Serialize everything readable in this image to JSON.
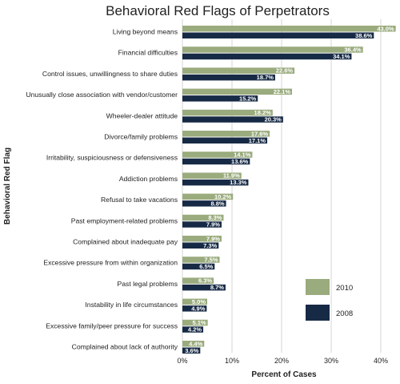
{
  "chart_data": {
    "type": "bar",
    "orientation": "horizontal",
    "title": "Behavioral Red Flags of Perpetrators",
    "xlabel": "Percent of Cases",
    "ylabel": "Behavioral Red Flag",
    "xlim": [
      0,
      45
    ],
    "x_ticks": [
      "0%",
      "10%",
      "20%",
      "30%",
      "40%"
    ],
    "grid": true,
    "legend_position": "bottom-right",
    "categories": [
      "Living beyond means",
      "Financial difficulties",
      "Control issues, unwillingness to share duties",
      "Unusually close association with vendor/customer",
      "Wheeler-dealer attitude",
      "Divorce/family problems",
      "Irritability, suspiciousness or defensiveness",
      "Addiction problems",
      "Refusal to take vacations",
      "Past employment-related problems",
      "Complained about inadequate pay",
      "Excessive pressure from within organization",
      "Past legal problems",
      "Instability in life circumstances",
      "Excessive family/peer pressure for success",
      "Complained about lack of authority"
    ],
    "series": [
      {
        "name": "2010",
        "color": "#9aab7d",
        "values": [
          43.0,
          36.4,
          22.6,
          22.1,
          18.2,
          17.6,
          14.1,
          11.9,
          10.2,
          8.3,
          7.9,
          7.5,
          6.3,
          5.0,
          5.1,
          4.4
        ],
        "labels": [
          "43.0%",
          "36.4%",
          "22.6%",
          "22.1%",
          "18.2%",
          "17.6%",
          "14.1%",
          "11.9%",
          "10.2%",
          "8.3%",
          "7.9%",
          "7.5%",
          "6.3%",
          "5.0%",
          "5.1%",
          "4.4%"
        ]
      },
      {
        "name": "2008",
        "color": "#172a45",
        "values": [
          38.6,
          34.1,
          18.7,
          15.2,
          20.3,
          17.1,
          13.6,
          13.3,
          8.8,
          7.9,
          7.3,
          6.5,
          8.7,
          4.9,
          4.2,
          3.6
        ],
        "labels": [
          "38.6%",
          "34.1%",
          "18.7%",
          "15.2%",
          "20.3%",
          "17.1%",
          "13.6%",
          "13.3%",
          "8.8%",
          "7.9%",
          "7.3%",
          "6.5%",
          "8.7%",
          "4.9%",
          "4.2%",
          "3.6%"
        ]
      }
    ]
  }
}
